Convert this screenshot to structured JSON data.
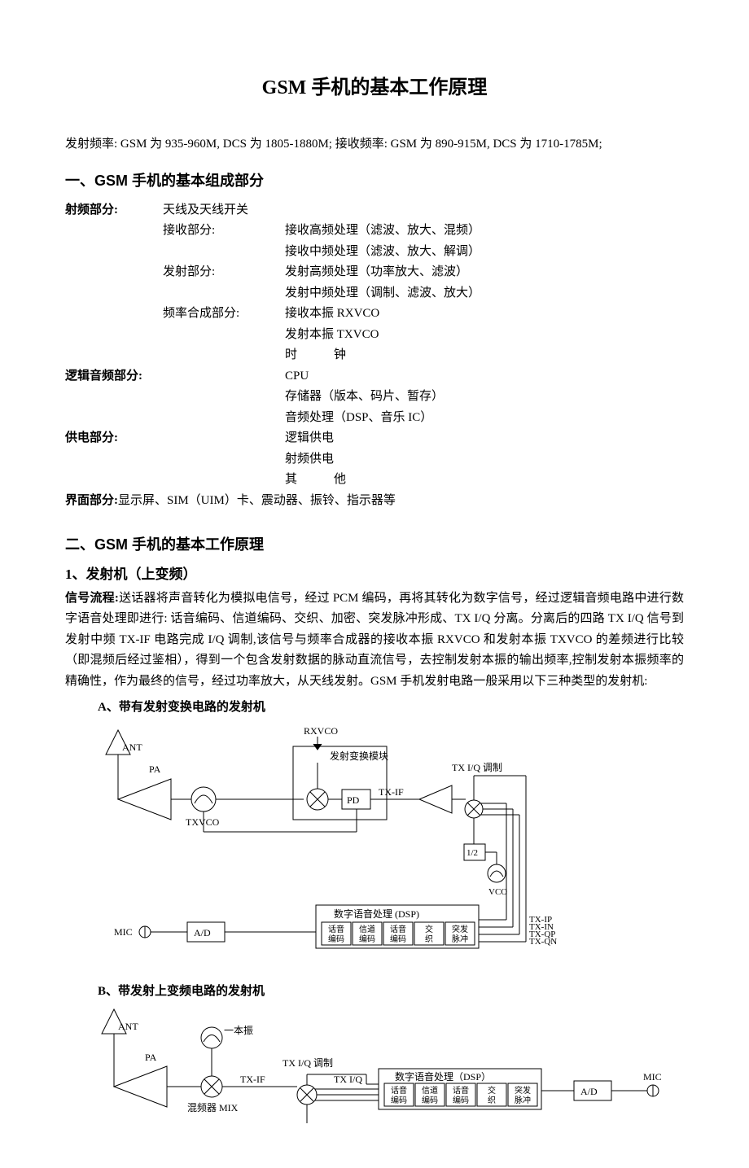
{
  "title": "GSM 手机的基本工作原理",
  "freq_line": "发射频率: GSM 为 935-960M, DCS 为 1805-1880M; 接收频率: GSM 为 890-915M, DCS 为 1710-1785M;",
  "section1": {
    "heading": "一、GSM 手机的基本组成部分",
    "rows": [
      {
        "c1": "射频部分:",
        "c2": "天线及天线开关",
        "c3": ""
      },
      {
        "c1": "",
        "c2": "接收部分:",
        "c3": "接收高频处理（滤波、放大、混频）"
      },
      {
        "c1": "",
        "c2": "",
        "c3": "接收中频处理（滤波、放大、解调）"
      },
      {
        "c1": "",
        "c2": "发射部分:",
        "c3": "发射高频处理（功率放大、滤波）"
      },
      {
        "c1": "",
        "c2": "",
        "c3": "发射中频处理（调制、滤波、放大）"
      },
      {
        "c1": "",
        "c2": "频率合成部分:",
        "c3": "接收本振 RXVCO"
      },
      {
        "c1": "",
        "c2": "",
        "c3": "发射本振 TXVCO"
      },
      {
        "c1": "",
        "c2": "",
        "c3": "时　　　钟"
      },
      {
        "c1": "逻辑音频部分:",
        "c2": "",
        "c3": "CPU"
      },
      {
        "c1": "",
        "c2": "",
        "c3": "存储器（版本、码片、暂存）"
      },
      {
        "c1": "",
        "c2": "",
        "c3": "音频处理（DSP、音乐 IC）"
      },
      {
        "c1": "供电部分:",
        "c2": "",
        "c3": "逻辑供电"
      },
      {
        "c1": "",
        "c2": "",
        "c3": "射频供电"
      },
      {
        "c1": "",
        "c2": "",
        "c3": "其　　　他"
      }
    ],
    "last_line_prefix": "界面部分:",
    "last_line": "显示屏、SIM（UIM）卡、震动器、振铃、指示器等"
  },
  "section2": {
    "heading": "二、GSM 手机的基本工作原理",
    "sub1": {
      "heading": "1、发射机（上变频）",
      "label": "信号流程:",
      "text": "送话器将声音转化为模拟电信号，经过 PCM 编码，再将其转化为数字信号，经过逻辑音频电路中进行数字语音处理即进行: 话音编码、信道编码、交织、加密、突发脉冲形成、TX I/Q  分离。分离后的四路 TX I/Q 信号到发射中频 TX-IF 电路完成 I/Q 调制,该信号与频率合成器的接收本振 RXVCO 和发射本振 TXVCO 的差频进行比较（即混频后经过鉴相），得到一个包含发射数据的脉动直流信号，去控制发射本振的输出频率,控制发射本振频率的精确性，作为最终的信号，经过功率放大，从天线发射。GSM 手机发射电路一般采用以下三种类型的发射机:"
    },
    "diagA": {
      "heading": "A、带有发射变换电路的发射机",
      "ant": "ANT",
      "pa": "PA",
      "txvco": "TXVCO",
      "rxvco": "RXVCO",
      "conv_label": "发射变换模块",
      "pd": "PD",
      "txif": "TX-IF",
      "iq_label": "TX I/Q 调制",
      "onehalf": "1/2",
      "vco": "VCO",
      "mic": "MIC",
      "ad": "A/D",
      "dsp_label": "数字语音处理 (DSP)",
      "dsp_cells": [
        "话音\n编码",
        "信道\n编码",
        "话音\n编码",
        "交\n织",
        "突发\n脉冲"
      ],
      "outs": [
        "TX-IP",
        "TX-IN",
        "TX-QP",
        "TX-QN"
      ],
      "line_color": "#000000",
      "bg": "#ffffff"
    },
    "diagB": {
      "heading": "B、带发射上变频电路的发射机",
      "ant": "ANT",
      "pa": "PA",
      "osc": "一本振",
      "mixer": "混频器 MIX",
      "txif": "TX-IF",
      "iq_label": "TX I/Q 调制",
      "txiq": "TX I/Q",
      "dsp_label": "数字语音处理（DSP）",
      "dsp_cells": [
        "话音\n编码",
        "信道\n编码",
        "话音\n编码",
        "交\n织",
        "突发\n脉冲"
      ],
      "ad": "A/D",
      "mic": "MIC",
      "line_color": "#000000"
    }
  }
}
